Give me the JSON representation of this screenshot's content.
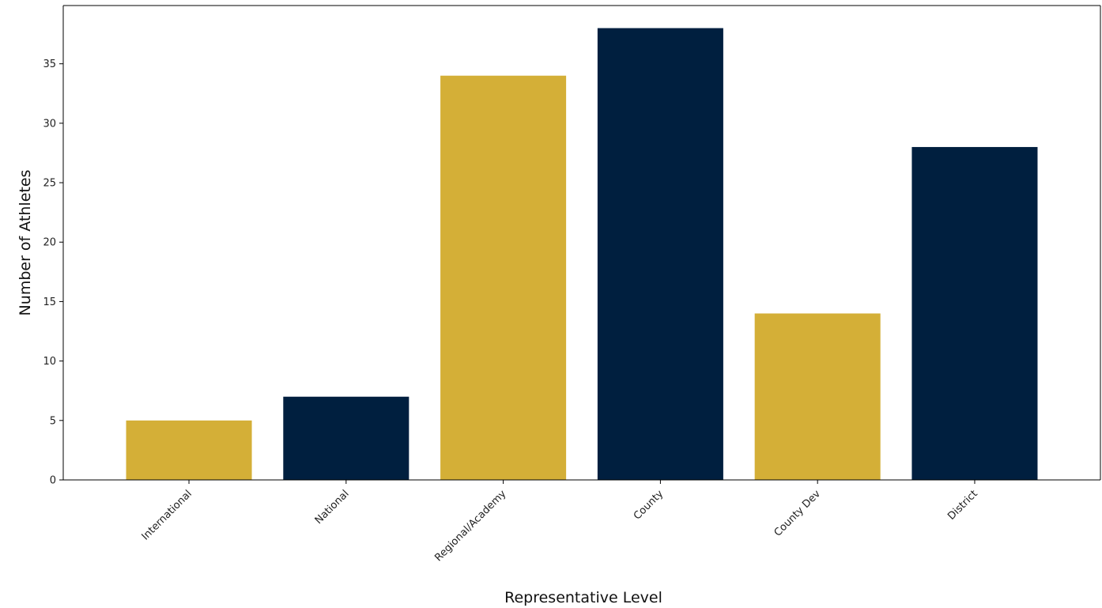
{
  "chart_data": {
    "type": "bar",
    "title": "",
    "xlabel": "Representative Level",
    "ylabel": "Number of Athletes",
    "categories": [
      "International",
      "National",
      "Regional/Academy",
      "County",
      "County Dev",
      "District"
    ],
    "values": [
      5,
      7,
      34,
      38,
      14,
      28
    ],
    "colors": [
      "#d4af37",
      "#001f3f",
      "#d4af37",
      "#001f3f",
      "#d4af37",
      "#001f3f"
    ],
    "ylim": [
      0,
      39.9
    ],
    "yticks": [
      0,
      5,
      10,
      15,
      20,
      25,
      30,
      35
    ],
    "grid": false,
    "legend": "none"
  }
}
